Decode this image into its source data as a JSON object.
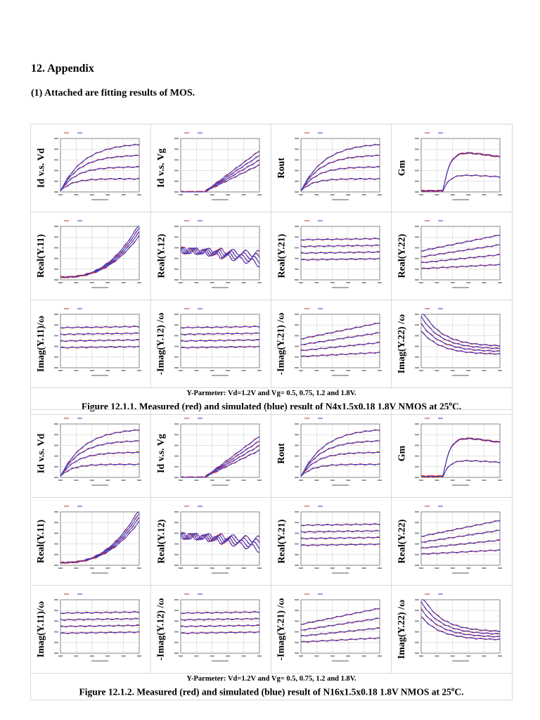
{
  "section_title": "12. Appendix",
  "subtitle": "(1) Attached are fitting results of MOS.",
  "colors": {
    "measured": "#d42a2a",
    "simulated": "#2b3ad6",
    "grid": "#bdbdbd",
    "border": "#d9d9d9"
  },
  "figures": [
    {
      "plots": [
        {
          "label": "Id v.s. Vd",
          "kind": "sat"
        },
        {
          "label": "Id v.s. Vg",
          "kind": "lin"
        },
        {
          "label": "Rout",
          "kind": "sat"
        },
        {
          "label": "Gm",
          "kind": "gm"
        },
        {
          "label": "Real(Y.11)",
          "kind": "exp"
        },
        {
          "label": "Real(Y.12)",
          "kind": "noisy"
        },
        {
          "label": "Real(Y.21)",
          "kind": "flat"
        },
        {
          "label": "Real(Y.22)",
          "kind": "rise"
        },
        {
          "label": "Imag(Y.11)/ω",
          "kind": "flat"
        },
        {
          "label": "-Imag(Y.12) /ω",
          "kind": "flat"
        },
        {
          "label": "-Imag(Y.21) /ω",
          "kind": "rise"
        },
        {
          "label": "Imag(Y.22) /ω",
          "kind": "decay"
        }
      ],
      "params": "Y-Parmeter: Vd=1.2V and Vg= 0.5, 0.75, 1.2 and 1.8V.",
      "caption": "Figure 12.1.1. Measured (red) and simulated (blue) result of N4x1.5x0.18 1.8V NMOS at 25",
      "caption_deg": "o",
      "caption_unit": "C."
    },
    {
      "plots": [
        {
          "label": "Id v.s. Vd",
          "kind": "sat"
        },
        {
          "label": "Id v.s. Vg",
          "kind": "lin"
        },
        {
          "label": "Rout",
          "kind": "sat"
        },
        {
          "label": "Gm",
          "kind": "gm"
        },
        {
          "label": "Real(Y.11)",
          "kind": "exp"
        },
        {
          "label": "Real(Y.12)",
          "kind": "noisy"
        },
        {
          "label": "Real(Y.21)",
          "kind": "flat"
        },
        {
          "label": "Real(Y.22)",
          "kind": "rise"
        },
        {
          "label": "Imag(Y.11)/ω",
          "kind": "flat"
        },
        {
          "label": "-Imag(Y.12) /ω",
          "kind": "flat"
        },
        {
          "label": "-Imag(Y.21) /ω",
          "kind": "rise"
        },
        {
          "label": "Imag(Y.22) /ω",
          "kind": "decay"
        }
      ],
      "params": "Y-Parmeter: Vd=1.2V and Vg= 0.5, 0.75, 1.2 and 1.8V.",
      "caption": "Figure 12.1.2. Measured (red) and simulated (blue) result of N16x1.5x0.18 1.8V NMOS at 25",
      "caption_deg": "o",
      "caption_unit": "C."
    }
  ]
}
